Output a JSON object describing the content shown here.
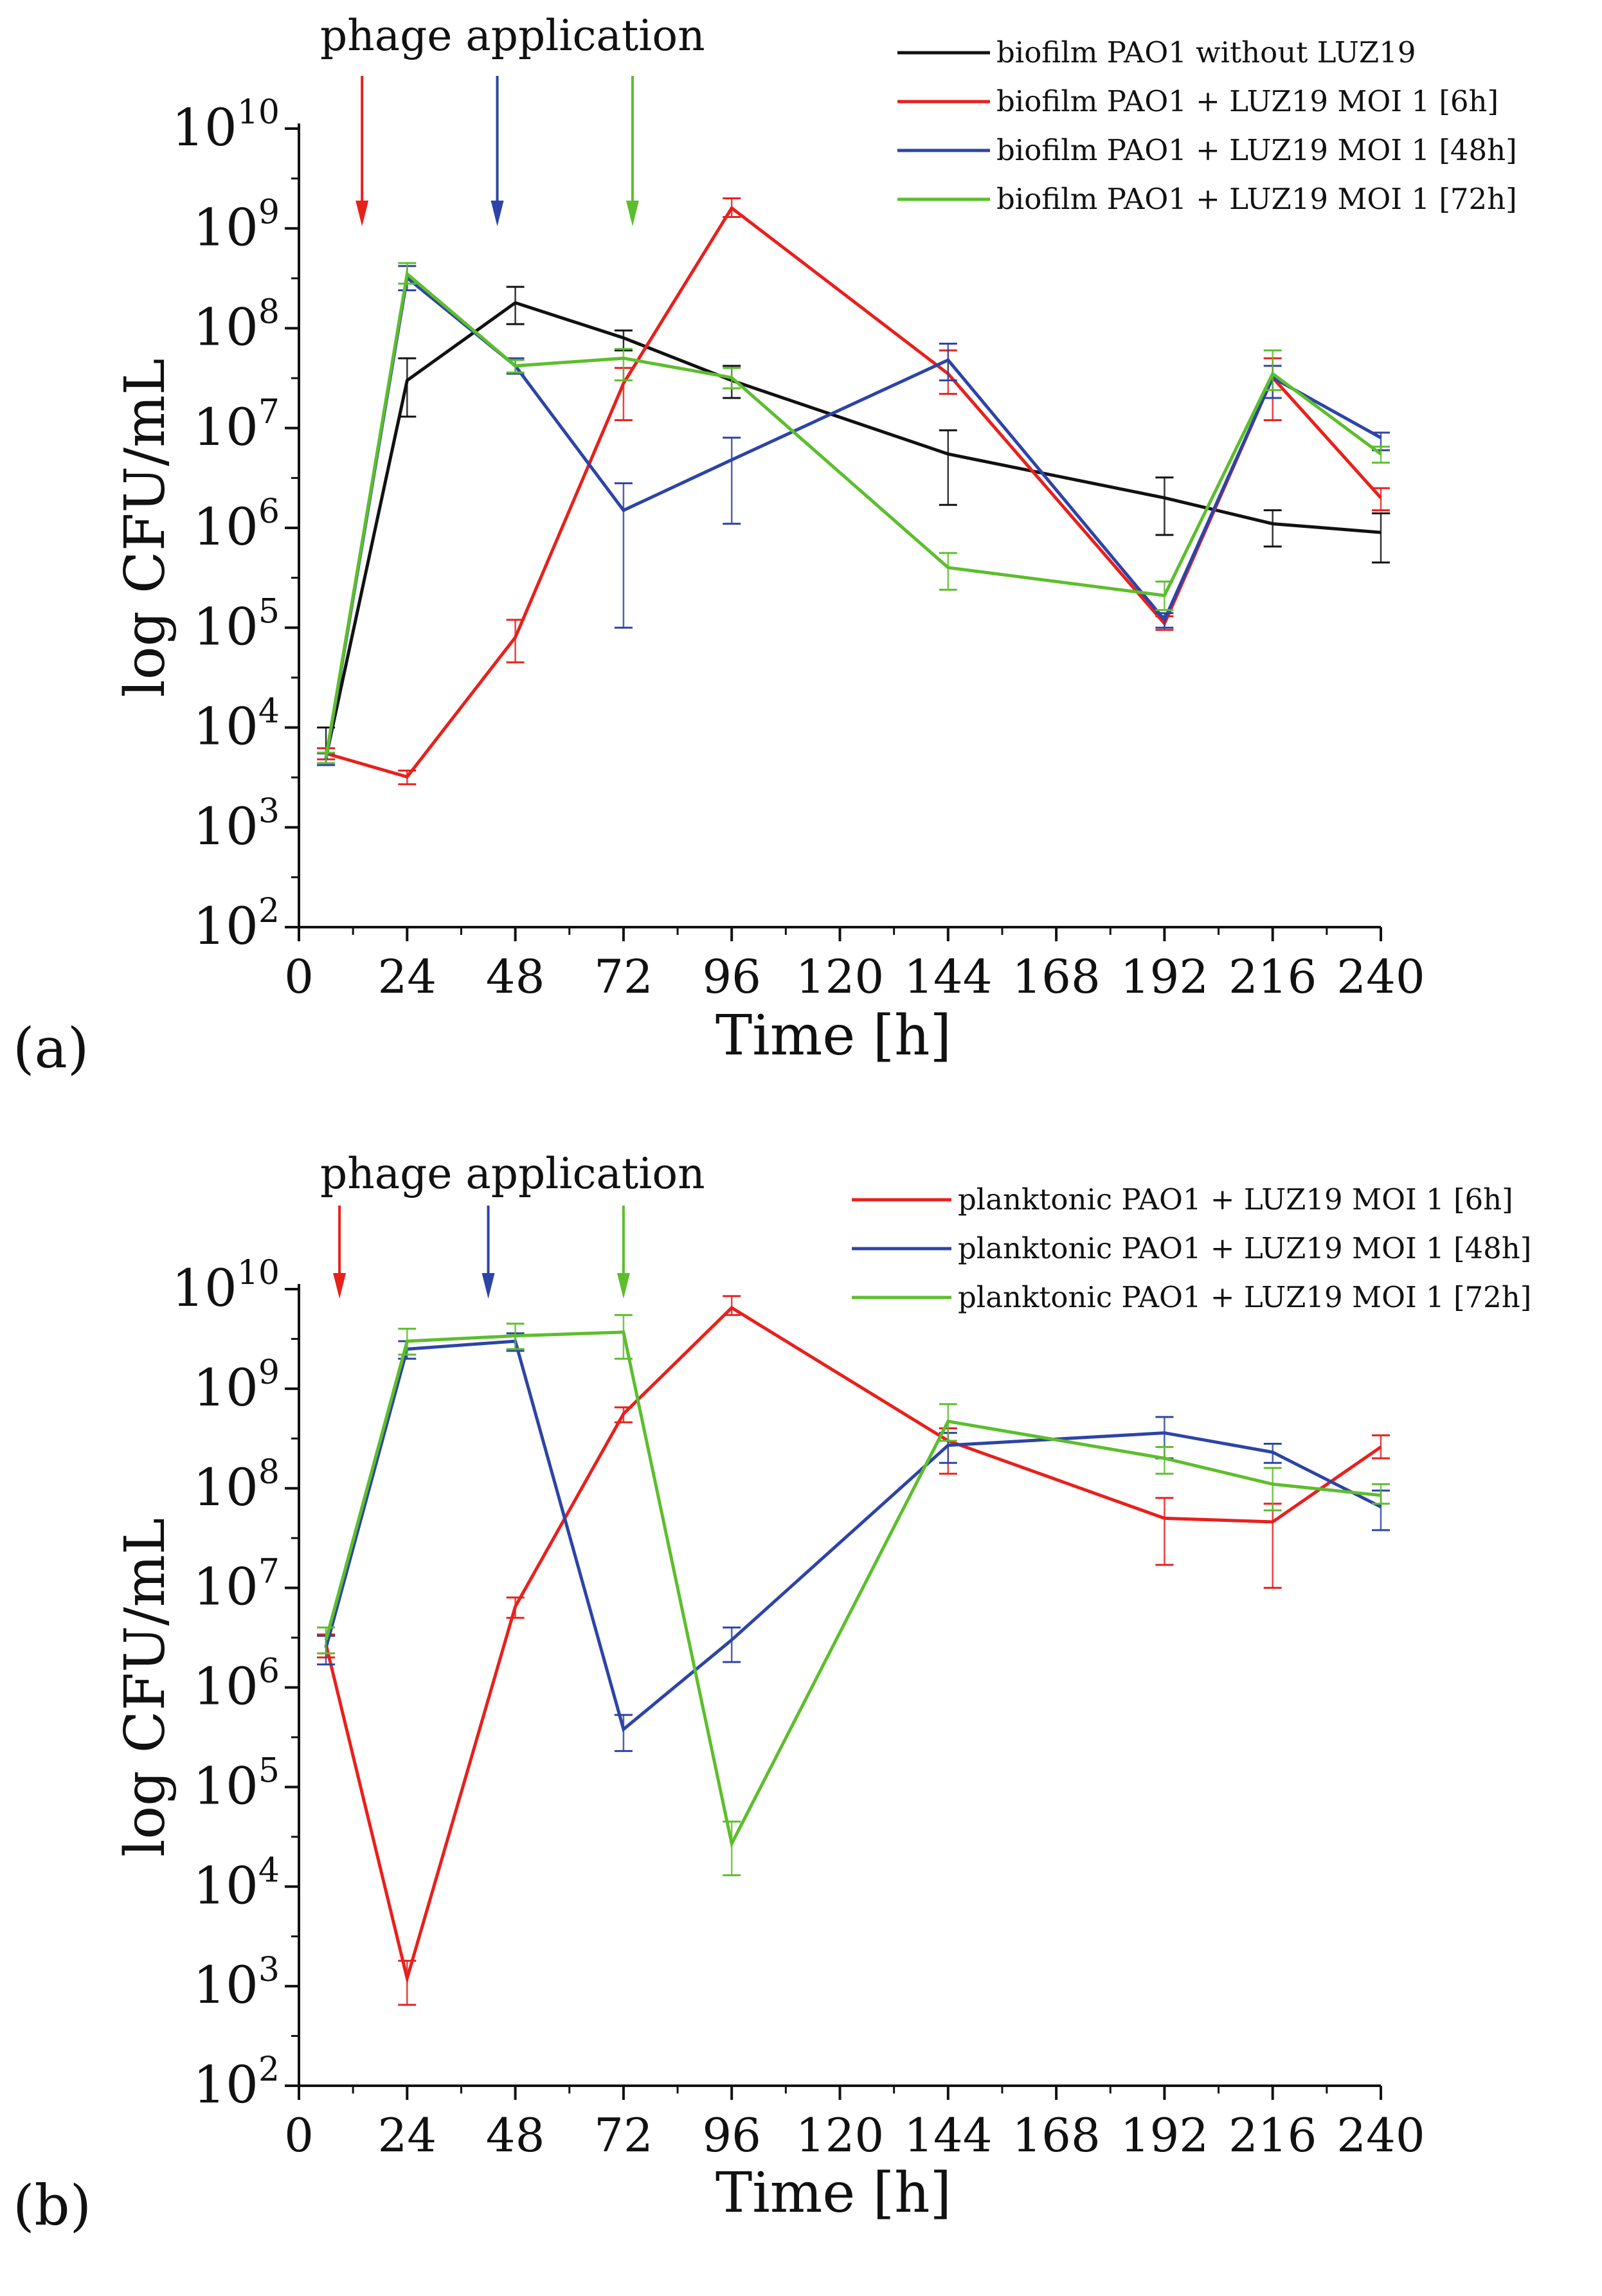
{
  "chart_data": [
    {
      "type": "line",
      "panel_label": "(a)",
      "title": "",
      "xlabel": "Time [h]",
      "ylabel": "log CFU/mL",
      "yscale": "log",
      "xlim": [
        0,
        240
      ],
      "ylim": [
        100,
        10000000000
      ],
      "x_ticks": [
        0,
        24,
        48,
        72,
        96,
        120,
        144,
        168,
        192,
        216,
        240
      ],
      "y_ticks": [
        {
          "base": "10",
          "exp": "2"
        },
        {
          "base": "10",
          "exp": "3"
        },
        {
          "base": "10",
          "exp": "4"
        },
        {
          "base": "10",
          "exp": "5"
        },
        {
          "base": "10",
          "exp": "6"
        },
        {
          "base": "10",
          "exp": "7"
        },
        {
          "base": "10",
          "exp": "8"
        },
        {
          "base": "10",
          "exp": "9"
        },
        {
          "base": "10",
          "exp": "10"
        }
      ],
      "legend_position": "top-right",
      "annotation": {
        "text": "phage application",
        "arrows": [
          {
            "x": 14,
            "color": "#e8201c"
          },
          {
            "x": 44,
            "color": "#2d44a6"
          },
          {
            "x": 74,
            "color": "#5cbe2c"
          }
        ]
      },
      "series": [
        {
          "name": "biofilm PAO1 without LUZ19",
          "color": "#111111",
          "x": [
            6,
            24,
            48,
            72,
            96,
            144,
            192,
            216,
            240
          ],
          "y": [
            5000,
            30000000,
            180000000,
            80000000,
            30000000,
            5500000,
            2000000,
            1100000,
            900000
          ],
          "err_low": [
            4200,
            13000000,
            110000000,
            60000000,
            20000000,
            1700000,
            850000,
            650000,
            450000
          ],
          "err_high": [
            10000,
            50000000,
            260000000,
            95000000,
            42000000,
            9500000,
            3200000,
            1500000,
            1400000
          ]
        },
        {
          "name": "biofilm PAO1 + LUZ19 MOI 1 [6h]",
          "color": "#e8201c",
          "x": [
            6,
            24,
            48,
            72,
            96,
            144,
            192,
            216,
            240
          ],
          "y": [
            5500,
            3200,
            80000,
            28000000,
            1600000000,
            35000000,
            110000,
            32000000,
            2000000
          ],
          "err_low": [
            4800,
            2700,
            45000,
            12000000,
            1300000000,
            22000000,
            95000,
            12000000,
            1500000
          ],
          "err_high": [
            6200,
            3700,
            120000,
            40000000,
            2000000000,
            60000000,
            130000,
            50000000,
            2500000
          ]
        },
        {
          "name": "biofilm PAO1 + LUZ19 MOI 1 [48h]",
          "color": "#2d44a6",
          "x": [
            6,
            24,
            48,
            72,
            96,
            144,
            192,
            216,
            240
          ],
          "y": [
            4800,
            320000000,
            42000000,
            1500000,
            4800000,
            48000000,
            120000,
            32000000,
            8000000
          ],
          "err_low": [
            4200,
            240000000,
            35000000,
            100000,
            1100000,
            30000000,
            100000,
            20000000,
            6000000
          ],
          "err_high": [
            5500,
            420000000,
            50000000,
            2800000,
            8000000,
            70000000,
            140000,
            42000000,
            9000000
          ]
        },
        {
          "name": "biofilm PAO1 + LUZ19 MOI 1 [72h]",
          "color": "#5cbe2c",
          "x": [
            6,
            24,
            48,
            72,
            96,
            144,
            192,
            216,
            240
          ],
          "y": [
            5000,
            350000000,
            42000000,
            50000000,
            32000000,
            400000,
            210000,
            35000000,
            5500000
          ],
          "err_low": [
            4400,
            280000000,
            36000000,
            30000000,
            25000000,
            240000,
            150000,
            24000000,
            4500000
          ],
          "err_high": [
            5600,
            450000000,
            48000000,
            62000000,
            40000000,
            560000,
            290000,
            60000000,
            6500000
          ]
        }
      ]
    },
    {
      "type": "line",
      "panel_label": "(b)",
      "title": "",
      "xlabel": "Time [h]",
      "ylabel": "log CFU/mL",
      "yscale": "log",
      "xlim": [
        0,
        240
      ],
      "ylim": [
        100,
        10000000000
      ],
      "x_ticks": [
        0,
        24,
        48,
        72,
        96,
        120,
        144,
        168,
        192,
        216,
        240
      ],
      "y_ticks": [
        {
          "base": "10",
          "exp": "2"
        },
        {
          "base": "10",
          "exp": "3"
        },
        {
          "base": "10",
          "exp": "4"
        },
        {
          "base": "10",
          "exp": "5"
        },
        {
          "base": "10",
          "exp": "6"
        },
        {
          "base": "10",
          "exp": "7"
        },
        {
          "base": "10",
          "exp": "8"
        },
        {
          "base": "10",
          "exp": "9"
        },
        {
          "base": "10",
          "exp": "10"
        }
      ],
      "legend_position": "top-right",
      "annotation": {
        "text": "phage application",
        "arrows": [
          {
            "x": 9,
            "color": "#e8201c"
          },
          {
            "x": 42,
            "color": "#2d44a6"
          },
          {
            "x": 72,
            "color": "#5cbe2c"
          }
        ]
      },
      "series": [
        {
          "name": "planktonic PAO1 + LUZ19 MOI 1 [6h]",
          "color": "#e8201c",
          "x": [
            6,
            24,
            48,
            72,
            96,
            144,
            192,
            216,
            240
          ],
          "y": [
            2700000,
            1200,
            6500000,
            560000000,
            6500000000,
            300000000,
            50000000,
            46000000,
            260000000
          ],
          "err_low": [
            2000000,
            650,
            5000000,
            460000000,
            5500000000,
            140000000,
            17000000,
            10000000,
            200000000
          ],
          "err_high": [
            3400000,
            1800,
            8000000,
            650000000,
            8500000000,
            400000000,
            80000000,
            70000000,
            340000000
          ]
        },
        {
          "name": "planktonic PAO1 + LUZ19 MOI 1 [48h]",
          "color": "#2d44a6",
          "x": [
            6,
            24,
            48,
            72,
            96,
            144,
            192,
            216,
            240
          ],
          "y": [
            2500000,
            2500000000,
            3000000000,
            380000,
            3000000,
            270000000,
            360000000,
            230000000,
            65000000
          ],
          "err_low": [
            1700000,
            2000000000,
            2400000000,
            230000,
            1800000,
            180000000,
            200000000,
            180000000,
            38000000
          ],
          "err_high": [
            3300000,
            3000000000,
            3600000000,
            530000,
            4000000,
            360000000,
            520000000,
            280000000,
            95000000
          ]
        },
        {
          "name": "planktonic PAO1 + LUZ19 MOI 1 [72h]",
          "color": "#5cbe2c",
          "x": [
            6,
            24,
            48,
            72,
            96,
            144,
            192,
            216,
            240
          ],
          "y": [
            3000000,
            3000000000,
            3400000000,
            3700000000,
            27000,
            470000000,
            200000000,
            110000000,
            85000000
          ],
          "err_low": [
            2200000,
            2200000000,
            2500000000,
            2000000000,
            13000,
            300000000,
            140000000,
            60000000,
            70000000
          ],
          "err_high": [
            4000000,
            4000000000,
            4500000000,
            5500000000,
            45000,
            700000000,
            260000000,
            160000000,
            110000000
          ]
        }
      ]
    }
  ]
}
